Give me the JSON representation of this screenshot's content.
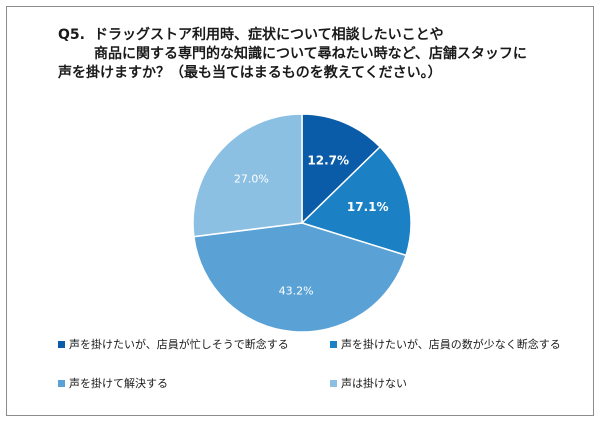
{
  "chart_data": {
    "type": "pie",
    "title": {
      "prefix": "Q5.",
      "lines": [
        "ドラッグストア利用時、症状について相談したいことや",
        "商品に関する専門的な知識について尋ねたい時など、店舗スタッフに",
        "声を掛けますか？（最も当てはまるものを教えてください。）"
      ]
    },
    "slices": [
      {
        "label": "声を掛けたいが、店員が忙しそうで断念する",
        "value": 12.7,
        "display": "12.7%",
        "color": "#0b5ca8",
        "label_color": "#ffffff"
      },
      {
        "label": "声を掛けたいが、店員の数が少なく断念する",
        "value": 17.1,
        "display": "17.1%",
        "color": "#1b80c4",
        "label_color": "#ffffff"
      },
      {
        "label": "声を掛けて解決する",
        "value": 43.2,
        "display": "43.2%",
        "color": "#5aa2d5",
        "label_color": "#ffffff"
      },
      {
        "label": "声は掛けない",
        "value": 27.0,
        "display": "27.0%",
        "color": "#8cc0e3",
        "label_color": "#ffffff"
      }
    ],
    "start_angle": "12 o'clock",
    "direction": "clockwise",
    "legend_position": "bottom"
  }
}
